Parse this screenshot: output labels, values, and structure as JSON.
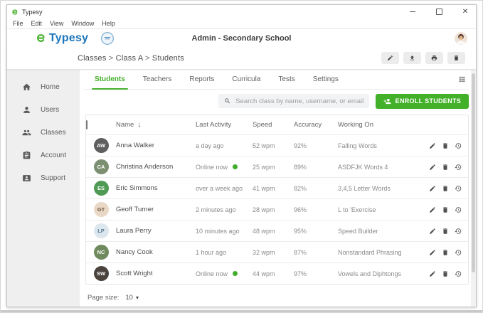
{
  "window": {
    "title": "Typesy",
    "menu_items": [
      "File",
      "Edit",
      "View",
      "Window",
      "Help"
    ],
    "controls": [
      "minimize",
      "maximize",
      "close"
    ]
  },
  "header": {
    "brand": "Typesy",
    "title": "Admin - Secondary School"
  },
  "breadcrumb": {
    "items": [
      "Classes",
      "Class A",
      "Students"
    ],
    "separator": ">"
  },
  "toolbar": {
    "icons": [
      "pencil",
      "upload",
      "printer",
      "trash"
    ]
  },
  "sidebar": {
    "items": [
      {
        "label": "Home",
        "icon": "home"
      },
      {
        "label": "Users",
        "icon": "user"
      },
      {
        "label": "Classes",
        "icon": "people"
      },
      {
        "label": "Account",
        "icon": "clipboard"
      },
      {
        "label": "Support",
        "icon": "contact-card"
      }
    ]
  },
  "tabs": {
    "items": [
      {
        "label": "Students",
        "active": true
      },
      {
        "label": "Teachers",
        "active": false
      },
      {
        "label": "Reports",
        "active": false
      },
      {
        "label": "Curricula",
        "active": false
      },
      {
        "label": "Tests",
        "active": false
      },
      {
        "label": "Settings",
        "active": false
      }
    ]
  },
  "search": {
    "placeholder": "Search class by name, username, or email..."
  },
  "enroll_button": {
    "label": "ENROLL STUDENTS"
  },
  "table": {
    "columns": [
      "Name",
      "Last Activity",
      "Speed",
      "Accuracy",
      "Working On"
    ],
    "sort": {
      "column": "Name",
      "direction": "descending"
    },
    "rows": [
      {
        "name": "Anna Walker",
        "initials": "AW",
        "avatar_color": "#5f5f5f",
        "avatar_text": "#ffffff",
        "last_activity": "a day ago",
        "online": false,
        "speed": "52 wpm",
        "accuracy": "92%",
        "working_on": "Falling Words"
      },
      {
        "name": "Christina Anderson",
        "initials": "CA",
        "avatar_color": "#7c8f70",
        "avatar_text": "#ffffff",
        "last_activity": "Online now",
        "online": true,
        "speed": "25 wpm",
        "accuracy": "89%",
        "working_on": "ASDFJK Words 4"
      },
      {
        "name": "Eric Simmons",
        "initials": "ES",
        "avatar_color": "#4f9a54",
        "avatar_text": "#ffffff",
        "last_activity": "over a week ago",
        "online": false,
        "speed": "41 wpm",
        "accuracy": "82%",
        "working_on": "3,4,5 Letter Words"
      },
      {
        "name": "Geoff Turner",
        "initials": "GT",
        "avatar_color": "#e9d8c6",
        "avatar_text": "#6b4f3a",
        "last_activity": "2 minutes ago",
        "online": false,
        "speed": "28 wpm",
        "accuracy": "96%",
        "working_on": "L to 'Exercise"
      },
      {
        "name": "Laura Perry",
        "initials": "LP",
        "avatar_color": "#dce6ee",
        "avatar_text": "#5a7c94",
        "last_activity": "10 minutes ago",
        "online": false,
        "speed": "48 wpm",
        "accuracy": "95%",
        "working_on": "Speed Builder"
      },
      {
        "name": "Nancy Cook",
        "initials": "NC",
        "avatar_color": "#6e8a5e",
        "avatar_text": "#ffffff",
        "last_activity": "1 hour ago",
        "online": false,
        "speed": "32 wpm",
        "accuracy": "87%",
        "working_on": "Nonstandard Phrasing"
      },
      {
        "name": "Scott Wright",
        "initials": "SW",
        "avatar_color": "#4a423c",
        "avatar_text": "#ffffff",
        "last_activity": "Online now",
        "online": true,
        "speed": "44 wpm",
        "accuracy": "97%",
        "working_on": "Vowels and Diphtongs"
      }
    ]
  },
  "footer": {
    "page_size_label": "Page size:",
    "page_size_value": "10"
  },
  "colors": {
    "accent_green": "#43b02a",
    "brand_blue": "#1b75bc",
    "online_dot": "#3fae2a"
  }
}
